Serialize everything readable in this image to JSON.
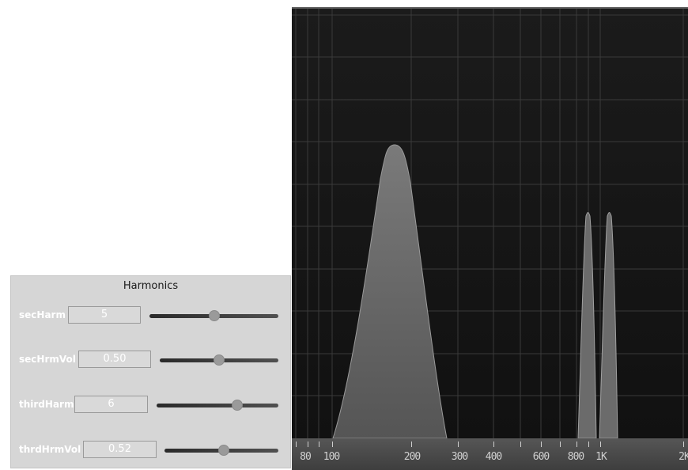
{
  "panel": {
    "title": "Harmonics",
    "rows": [
      {
        "label": "secHarm",
        "value": "5",
        "level": 0.5
      },
      {
        "label": "secHrmVol",
        "value": "0.50",
        "level": 0.5
      },
      {
        "label": "thirdHarm",
        "value": "6",
        "level": 0.66
      },
      {
        "label": "thrdHrmVol",
        "value": "0.52",
        "level": 0.52
      }
    ]
  },
  "analyzer": {
    "freq_labels": [
      "80",
      "100",
      "200",
      "300",
      "400",
      "600",
      "800",
      "1K",
      "2K"
    ],
    "colors": {
      "background": "#151515",
      "grid": "#3a3a3a",
      "curve": "#6a6a6a"
    }
  }
}
